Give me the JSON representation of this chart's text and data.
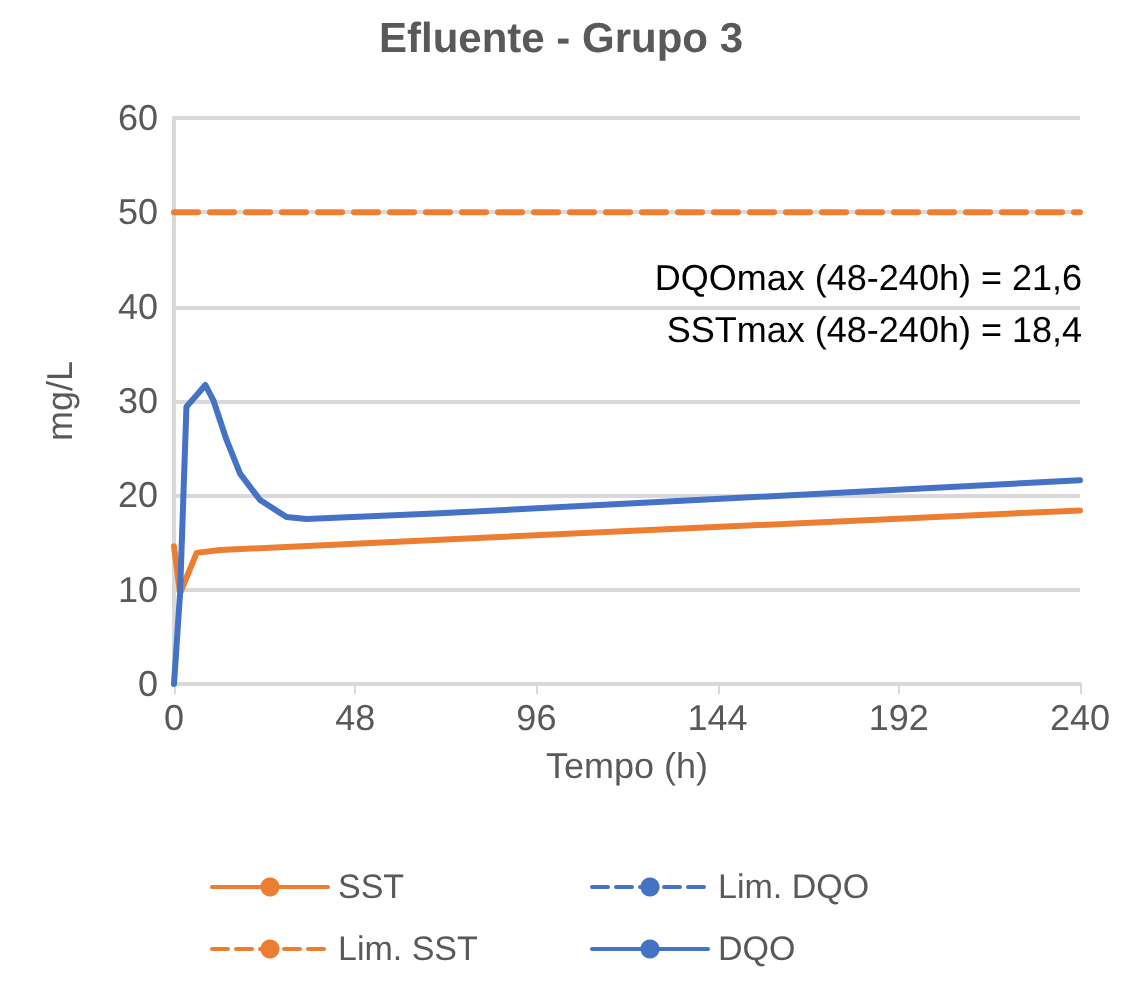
{
  "chart_data": {
    "type": "line",
    "title": "Efluente - Grupo 3",
    "xlabel": "Tempo (h)",
    "ylabel": "mg/L",
    "annotations": [
      "DQOmax (48-240h) = 21,6",
      "SSTmax (48-240h) = 18,4"
    ],
    "series": [
      {
        "name": "SST",
        "color": "#ed7d31",
        "line_style": "solid",
        "x": [
          0,
          1.6,
          6,
          12.2,
          70.5,
          240
        ],
        "values": [
          14.6,
          9.6,
          13.9,
          14.2,
          15.3,
          18.4
        ]
      },
      {
        "name": "Lim. DQO",
        "color": "#4472c4",
        "line_style": "dashed"
      },
      {
        "name": "Lim. SST",
        "color": "#ed7d31",
        "line_style": "dashed",
        "x": [
          0,
          240
        ],
        "values": [
          50,
          50
        ]
      },
      {
        "name": "DQO",
        "color": "#4472c4",
        "line_style": "solid",
        "x": [
          0,
          1.6,
          3.3,
          5.1,
          8.3,
          10.4,
          13.9,
          17.5,
          22.8,
          29.8,
          35.1,
          70.5,
          240
        ],
        "values": [
          0,
          9.6,
          29.4,
          30.2,
          31.7,
          30.1,
          25.9,
          22.3,
          19.5,
          17.7,
          17.5,
          18.1,
          21.6
        ]
      }
    ],
    "xlim": [
      0,
      240
    ],
    "xticks": [
      0,
      48,
      96,
      144,
      192,
      240
    ],
    "ylim": [
      0,
      60
    ],
    "yticks": [
      0,
      10,
      20,
      30,
      40,
      50,
      60
    ],
    "grid": "y",
    "legend": "bottom",
    "marker": "none"
  }
}
